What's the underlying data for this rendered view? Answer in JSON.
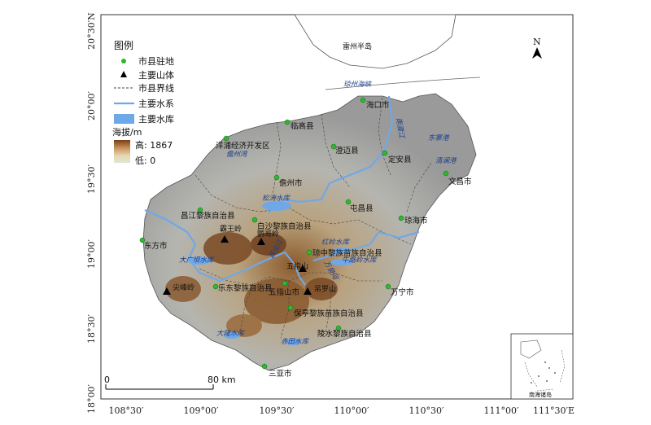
{
  "axes": {
    "x_ticks": [
      "108°30′",
      "109°00′",
      "109°30′",
      "110°00′",
      "110°30′",
      "111°00′",
      "111°30′E"
    ],
    "y_ticks": [
      "20°30′N",
      "20°00′",
      "19°30′",
      "19°00′",
      "18°30′",
      "18°00′"
    ]
  },
  "legend": {
    "title": "图例",
    "items": [
      {
        "label": "市县驻地",
        "symbol": "green-dot"
      },
      {
        "label": "主要山体",
        "symbol": "black-triangle"
      },
      {
        "label": "市县界线",
        "symbol": "dashed-line"
      },
      {
        "label": "主要水系",
        "symbol": "blue-line"
      },
      {
        "label": "主要水库",
        "symbol": "blue-box"
      }
    ],
    "elevation_title": "海拔/m",
    "elevation_high": "高: 1867",
    "elevation_low": "低: 0"
  },
  "north_arrow": "N",
  "scale_bar": {
    "start": "0",
    "end": "80 km"
  },
  "peninsula_label": "雷州半岛",
  "strait_label": "琼州海峡",
  "inset_label": "南海诸岛",
  "cities": [
    "海口市",
    "临高县",
    "洋浦经济开发区",
    "澄迈县",
    "定安县",
    "儋州市",
    "文昌市",
    "屯昌县",
    "昌江黎族自治县",
    "白沙黎族自治县",
    "琼海市",
    "东方市",
    "琼中黎族苗族自治县",
    "乐东黎族自治县",
    "五指山市",
    "万宁市",
    "保亭黎族苗族自治县",
    "陵水黎族自治县",
    "三亚市"
  ],
  "mountains": [
    "霸王岭",
    "鹦哥岭",
    "五指山",
    "吊罗山",
    "尖峰岭"
  ],
  "water_labels": [
    "南渡江",
    "东寨港",
    "清澜港",
    "儋州湾",
    "松涛水库",
    "红岭水库",
    "万泉河",
    "昌化江",
    "大广坝水库",
    "牛路岭水库",
    "大隆水库",
    "赤田水库"
  ],
  "colors": {
    "dot": "#2db82d",
    "river": "#6fa8e8",
    "sea": "#ffffff",
    "land": "#a8a8a8"
  }
}
